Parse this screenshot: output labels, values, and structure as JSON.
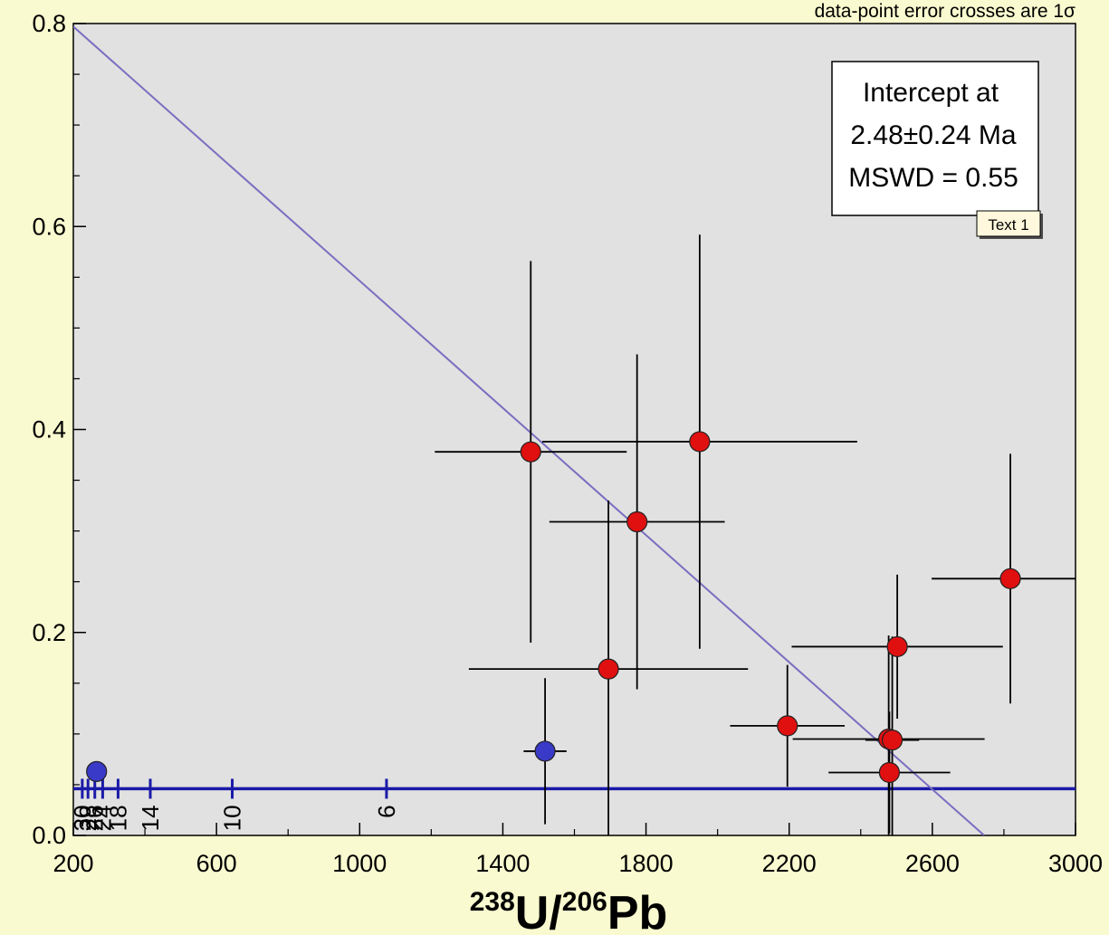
{
  "chart_data": {
    "type": "scatter",
    "note": "data-point error crosses are 1σ",
    "xlabel": {
      "sup1": "238",
      "el1": "U/",
      "sup2": "206",
      "el2": "Pb"
    },
    "ylabel": "",
    "xlim": [
      200,
      3000
    ],
    "ylim": [
      0.0,
      0.8
    ],
    "x_ticks": [
      {
        "value": 200,
        "label": "200"
      },
      {
        "value": 600,
        "label": "600"
      },
      {
        "value": 1000,
        "label": "1000"
      },
      {
        "value": 1400,
        "label": "1400"
      },
      {
        "value": 1800,
        "label": "1800"
      },
      {
        "value": 2200,
        "label": "2200"
      },
      {
        "value": 2600,
        "label": "2600"
      },
      {
        "value": 3000,
        "label": "3000"
      }
    ],
    "y_ticks": [
      {
        "value": 0.0,
        "label": "0.0"
      },
      {
        "value": 0.2,
        "label": "0.2"
      },
      {
        "value": 0.4,
        "label": "0.4"
      },
      {
        "value": 0.6,
        "label": "0.6"
      },
      {
        "value": 0.8,
        "label": "0.8"
      }
    ],
    "grid": false,
    "colors": {
      "plot_bg": "#e1e1e1",
      "page_bg": "#fafad0",
      "included": "#e01010",
      "excluded": "#3a3ac8",
      "regression": "#7a6ec0",
      "concordia": "#1a1aa8",
      "error_bar": "#000000"
    },
    "regression_line": {
      "x": [
        200,
        2745
      ],
      "y": [
        0.797,
        0.0
      ]
    },
    "concordia": {
      "y": 0.046,
      "age_marks": [
        {
          "x": 225,
          "label": "30"
        },
        {
          "x": 241,
          "label": "28"
        },
        {
          "x": 260,
          "label": "26"
        },
        {
          "x": 282,
          "label": "24"
        },
        {
          "x": 325,
          "label": "18"
        },
        {
          "x": 415,
          "label": "14"
        },
        {
          "x": 644,
          "label": "10"
        },
        {
          "x": 1075,
          "label": "6"
        }
      ]
    },
    "series": [
      {
        "status": "included",
        "points": [
          {
            "x": 1478,
            "y": 0.378,
            "x_err": 268,
            "y_err": 0.188
          },
          {
            "x": 1950,
            "y": 0.388,
            "x_err": 440,
            "y_err": 0.204
          },
          {
            "x": 1775,
            "y": 0.309,
            "x_err": 245,
            "y_err": 0.165
          },
          {
            "x": 1695,
            "y": 0.164,
            "x_err": 390,
            "y_err": 0.166
          },
          {
            "x": 2195,
            "y": 0.108,
            "x_err": 160,
            "y_err": 0.06
          },
          {
            "x": 2478,
            "y": 0.095,
            "x_err": 268,
            "y_err": 0.102
          },
          {
            "x": 2488,
            "y": 0.094,
            "x_err": 75,
            "y_err": 0.102
          },
          {
            "x": 2480,
            "y": 0.062,
            "x_err": 170,
            "y_err": 0.06
          },
          {
            "x": 2502,
            "y": 0.186,
            "x_err": 295,
            "y_err": 0.071
          },
          {
            "x": 2818,
            "y": 0.253,
            "x_err": 220,
            "y_err": 0.123
          }
        ]
      },
      {
        "status": "excluded",
        "points": [
          {
            "x": 265,
            "y": 0.063,
            "x_err": 0,
            "y_err": 0
          },
          {
            "x": 1518,
            "y": 0.083,
            "x_err": 60,
            "y_err": 0.072
          }
        ]
      }
    ],
    "annotation_box": {
      "lines": [
        "Intercept at",
        "2.48±0.24  Ma",
        "MSWD  = 0.55"
      ]
    },
    "text_tag": "Text 1"
  }
}
